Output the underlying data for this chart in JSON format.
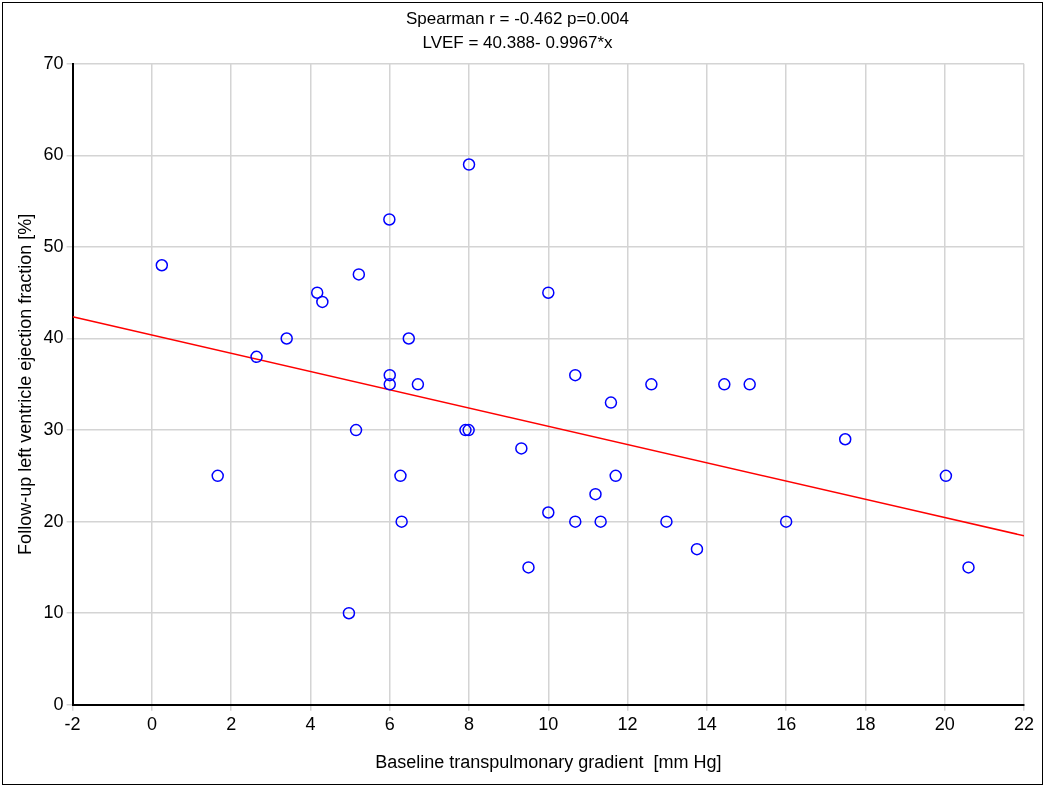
{
  "chart_data": {
    "type": "scatter",
    "title": "Spearman r = -0.462 p=0.004",
    "subtitle": "LVEF = 40.388- 0.9967*x",
    "xlabel": "Baseline transpulmonary gradient  [mm Hg]",
    "ylabel": "Follow-up left ventricle ejection fraction [%]",
    "xlim": [
      -2,
      22
    ],
    "xticks": [
      -2,
      0,
      2,
      4,
      6,
      8,
      10,
      12,
      14,
      16,
      18,
      20,
      22
    ],
    "ylim": [
      0,
      70
    ],
    "yticks": [
      0,
      10,
      20,
      30,
      40,
      50,
      60,
      70
    ],
    "grid": true,
    "marker": "circle",
    "series": [
      {
        "color": "#0000ff",
        "x": [
          0.25,
          1.66,
          2.64,
          3.4,
          4.17,
          4.3,
          4.97,
          5.15,
          5.22,
          5.99,
          6,
          6,
          6.27,
          6.3,
          6.48,
          6.71,
          7.91,
          7.99,
          8,
          9.32,
          9.5,
          10,
          10,
          10.68,
          10.68,
          11.19,
          11.32,
          11.58,
          11.7,
          12.6,
          12.98,
          13.75,
          14.44,
          15.08,
          16,
          17.49,
          20.03,
          20.6
        ],
        "values": [
          48,
          25,
          38,
          40,
          45,
          44,
          10,
          30,
          47,
          53,
          36,
          35,
          25,
          20,
          40,
          35,
          30,
          30,
          59,
          28,
          15,
          45,
          21,
          36,
          20,
          23,
          20,
          33,
          25,
          35,
          20,
          17,
          35,
          35,
          20,
          29,
          25,
          15
        ]
      },
      {
        "type": "line",
        "color": "#ff0000",
        "marker": "none",
        "x": [
          -2,
          22
        ],
        "values": [
          42.38,
          18.46
        ]
      }
    ]
  }
}
